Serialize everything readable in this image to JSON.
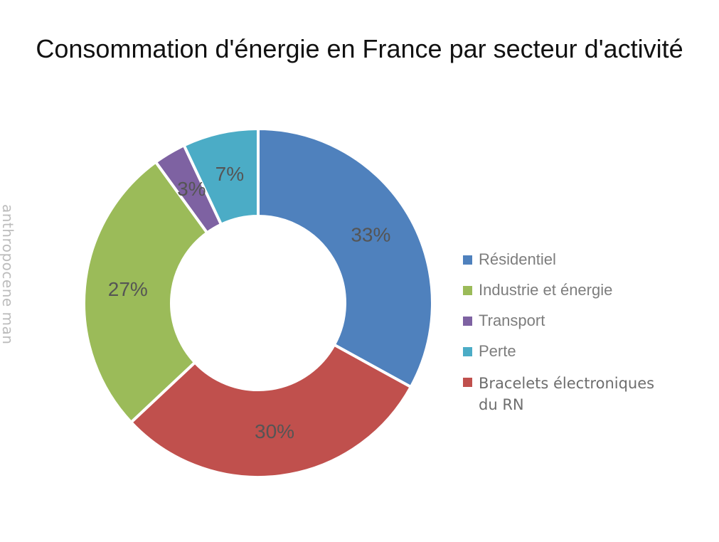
{
  "title": {
    "text": "Consommation d'énergie en France par secteur d'activité"
  },
  "watermark": {
    "text": "anthropocene man"
  },
  "colors": {
    "background": "#ffffff",
    "title_text": "#111111",
    "legend_text": "#7d7d7d",
    "data_label_text": "#555555",
    "watermark_text": "#bcbcbc"
  },
  "chart_data": {
    "type": "pie",
    "subtype": "donut",
    "title": "Consommation d'énergie en France par secteur d'activité",
    "direction": "clockwise",
    "start_angle_deg": 0,
    "donut_hole_ratio": 0.5,
    "legend_position": "right",
    "slice_gap_color": "#ffffff",
    "data_label_color": "#555555",
    "segments": [
      {
        "label": "Résidentiel",
        "value": 33,
        "data_label": "33%",
        "color": "#4F81BD"
      },
      {
        "label": "Bracelets électroniques du RN",
        "value": 30,
        "data_label": "30%",
        "color": "#C0504D"
      },
      {
        "label": "Industrie et énergie",
        "value": 27,
        "data_label": "27%",
        "color": "#9BBB59"
      },
      {
        "label": "Transport",
        "value": 3,
        "data_label": "3%",
        "color": "#7E62A2"
      },
      {
        "label": "Perte",
        "value": 7,
        "data_label": "7%",
        "color": "#4BACC6"
      }
    ]
  },
  "legend": {
    "items": [
      {
        "label": "Résidentiel",
        "color": "#4F81BD",
        "alt_font": false
      },
      {
        "label": "Industrie et énergie",
        "color": "#9BBB59",
        "alt_font": false
      },
      {
        "label": "Transport",
        "color": "#7E62A2",
        "alt_font": false
      },
      {
        "label": "Perte",
        "color": "#4BACC6",
        "alt_font": false
      },
      {
        "label": "Bracelets électroniques du RN",
        "color": "#C0504D",
        "alt_font": true
      }
    ]
  }
}
